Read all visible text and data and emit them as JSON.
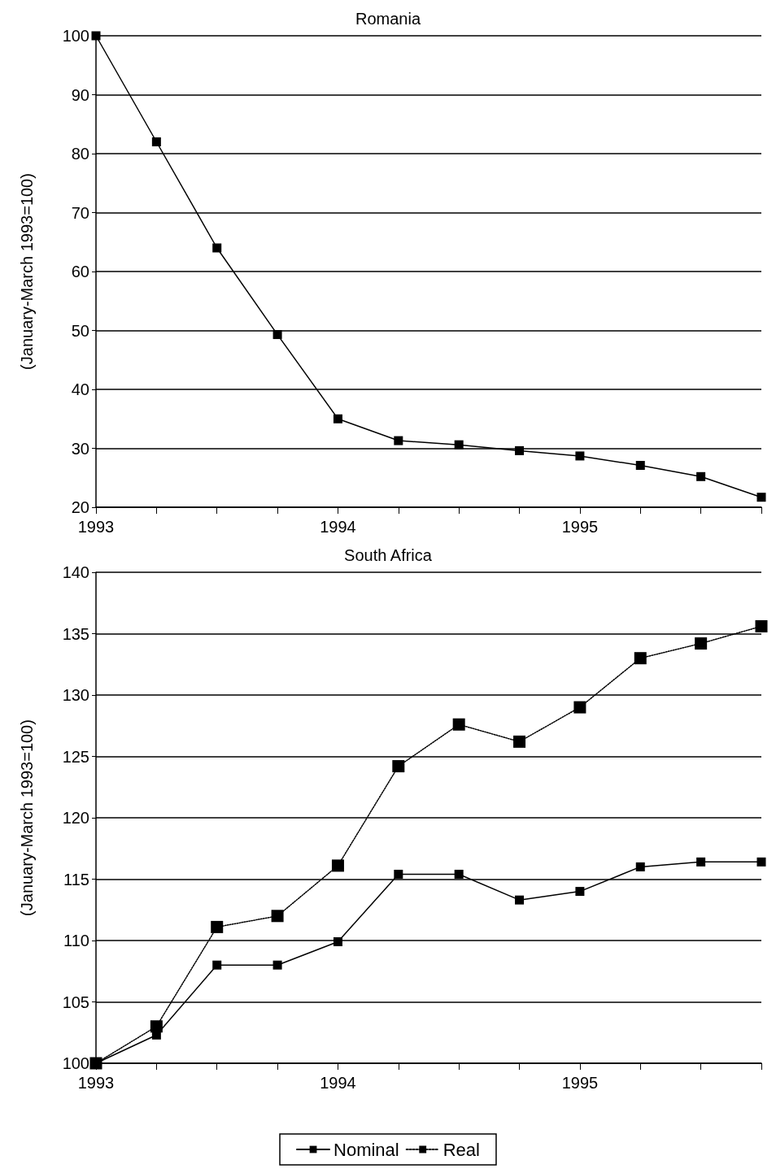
{
  "chart_data": [
    {
      "type": "line",
      "title": "Romania",
      "ylabel": "(January-March 1993=100)",
      "categories": [
        "1993",
        null,
        null,
        null,
        "1994",
        null,
        null,
        null,
        "1995",
        null,
        null,
        null
      ],
      "ylim": [
        20,
        100
      ],
      "yticks": [
        20,
        30,
        40,
        50,
        60,
        70,
        80,
        90,
        100
      ],
      "grid": "y",
      "legend": false,
      "marker": "square",
      "series": [
        {
          "color": "#000000",
          "line_style": "solid",
          "values": [
            100,
            82,
            64,
            49.3,
            35,
            31.3,
            30.6,
            29.6,
            28.7,
            27.1,
            25.2,
            21.7
          ]
        }
      ]
    },
    {
      "type": "line",
      "title": "South Africa",
      "ylabel": "(January-March 1993=100)",
      "categories": [
        "1993",
        null,
        null,
        null,
        "1994",
        null,
        null,
        null,
        "1995",
        null,
        null,
        null
      ],
      "ylim": [
        100,
        140
      ],
      "yticks": [
        100,
        105,
        110,
        115,
        120,
        125,
        130,
        135,
        140
      ],
      "grid": "y",
      "legend": "bottom",
      "marker": "square",
      "series": [
        {
          "name": "Nominal",
          "color": "#000000",
          "line_style": "solid",
          "values": [
            100,
            102.3,
            108,
            108,
            109.9,
            115.4,
            115.4,
            113.3,
            114,
            116,
            116.4,
            116.4
          ]
        },
        {
          "name": "Real",
          "color": "#000000",
          "line_style": "dotted",
          "values": [
            100,
            103,
            111.1,
            112,
            116.1,
            124.2,
            127.6,
            126.2,
            129,
            133,
            134.2,
            135.6
          ]
        }
      ]
    }
  ]
}
